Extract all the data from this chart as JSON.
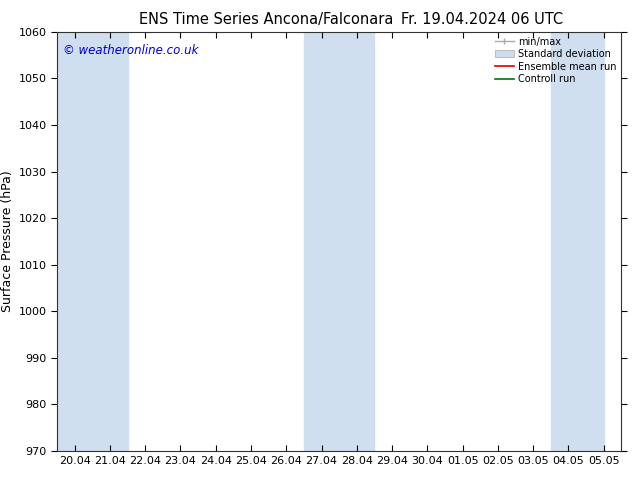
{
  "title_left": "ENS Time Series Ancona/Falconara",
  "title_right": "Fr. 19.04.2024 06 UTC",
  "ylabel": "Surface Pressure (hPa)",
  "ylim": [
    970,
    1060
  ],
  "yticks": [
    970,
    980,
    990,
    1000,
    1010,
    1020,
    1030,
    1040,
    1050,
    1060
  ],
  "x_labels": [
    "20.04",
    "21.04",
    "22.04",
    "23.04",
    "24.04",
    "25.04",
    "26.04",
    "27.04",
    "28.04",
    "29.04",
    "30.04",
    "01.05",
    "02.05",
    "03.05",
    "04.05",
    "05.05"
  ],
  "n_points": 16,
  "watermark": "© weatheronline.co.uk",
  "legend_entries": [
    "min/max",
    "Standard deviation",
    "Ensemble mean run",
    "Controll run"
  ],
  "band_color": "#cfdff0",
  "background_color": "#ffffff",
  "plot_bg_color": "#ffffff",
  "title_fontsize": 10.5,
  "tick_fontsize": 8,
  "ylabel_fontsize": 9,
  "watermark_color": "#0000cc",
  "fig_width": 6.34,
  "fig_height": 4.9,
  "dpi": 100,
  "shaded_xranges": [
    [
      0,
      2
    ],
    [
      7,
      9
    ],
    [
      14,
      15.5
    ]
  ],
  "minmax_color": "#aaaaaa",
  "std_facecolor": "#ccddee",
  "mean_color": "#dd0000",
  "ctrl_color": "#007700"
}
